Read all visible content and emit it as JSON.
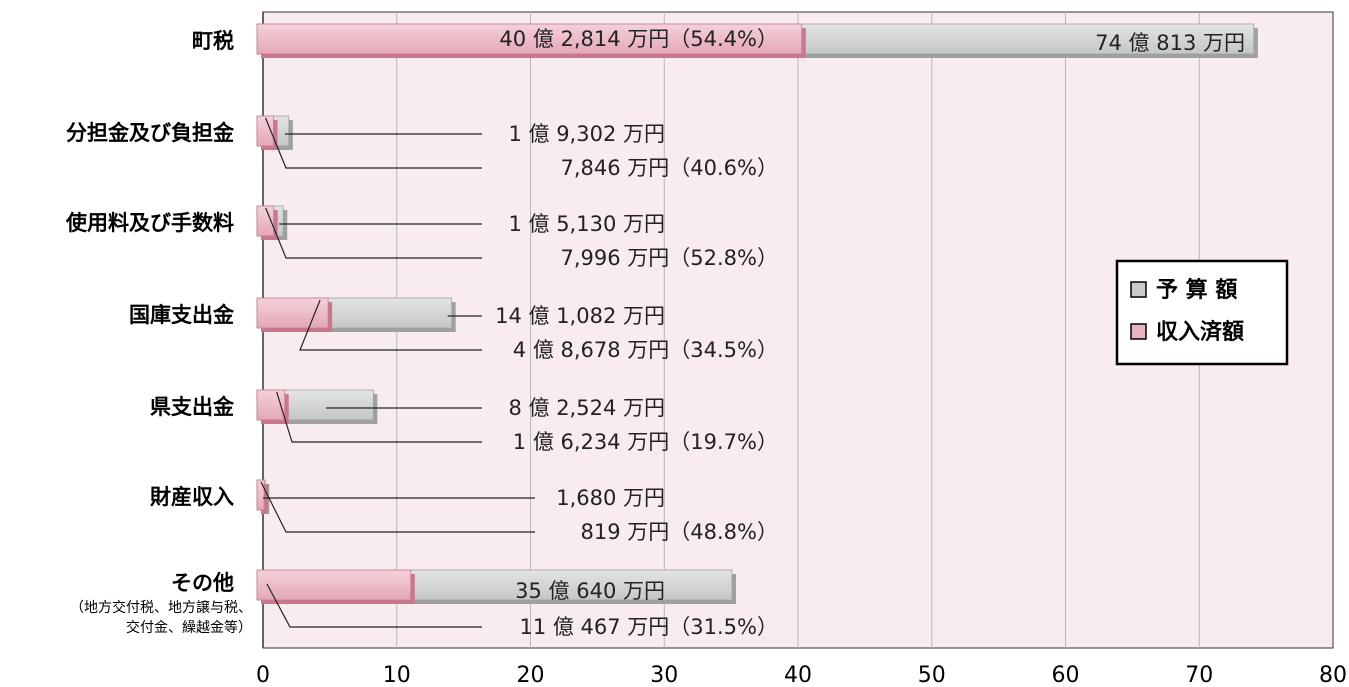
{
  "chart_data": {
    "type": "bar",
    "orientation": "horizontal",
    "categories": [
      "町税",
      "分担金及び負担金",
      "使用料及び手数料",
      "国庫支出金",
      "県支出金",
      "財産収入",
      "その他"
    ],
    "category_notes": [
      "",
      "",
      "",
      "",
      "",
      "",
      "（地方交付税、地方譲与税、\n交付金、繰越金等）"
    ],
    "series": [
      {
        "name": "予 算 額",
        "color": "#c8cbc9",
        "values": [
          74.0813,
          1.9302,
          1.513,
          14.1082,
          8.2524,
          0.168,
          35.064
        ]
      },
      {
        "name": "収入済額",
        "color": "#e8b4c0",
        "values": [
          40.2814,
          0.7846,
          0.7996,
          4.8678,
          1.6234,
          0.0819,
          11.0467
        ]
      }
    ],
    "budget_labels": [
      "74 億 813 万円",
      "1 億 9,302 万円",
      "1 億 5,130 万円",
      "14 億 1,082 万円",
      "8 億 2,524 万円",
      "1,680 万円",
      "35 億 640 万円"
    ],
    "received_labels": [
      "40 億 2,814 万円（54.4%）",
      "7,846 万円（40.6%）",
      "7,996 万円（52.8%）",
      "4 億 8,678 万円（34.5%）",
      "1 億 6,234 万円（19.7%）",
      "819 万円（48.8%）",
      "11 億 467 万円（31.5%）"
    ],
    "xlim": [
      0,
      80
    ],
    "xticks": [
      "0",
      "10",
      "20",
      "30",
      "40",
      "50",
      "60",
      "70",
      "80"
    ],
    "grid": true,
    "legend_position": "right",
    "plot_background": "#f9ecee"
  }
}
